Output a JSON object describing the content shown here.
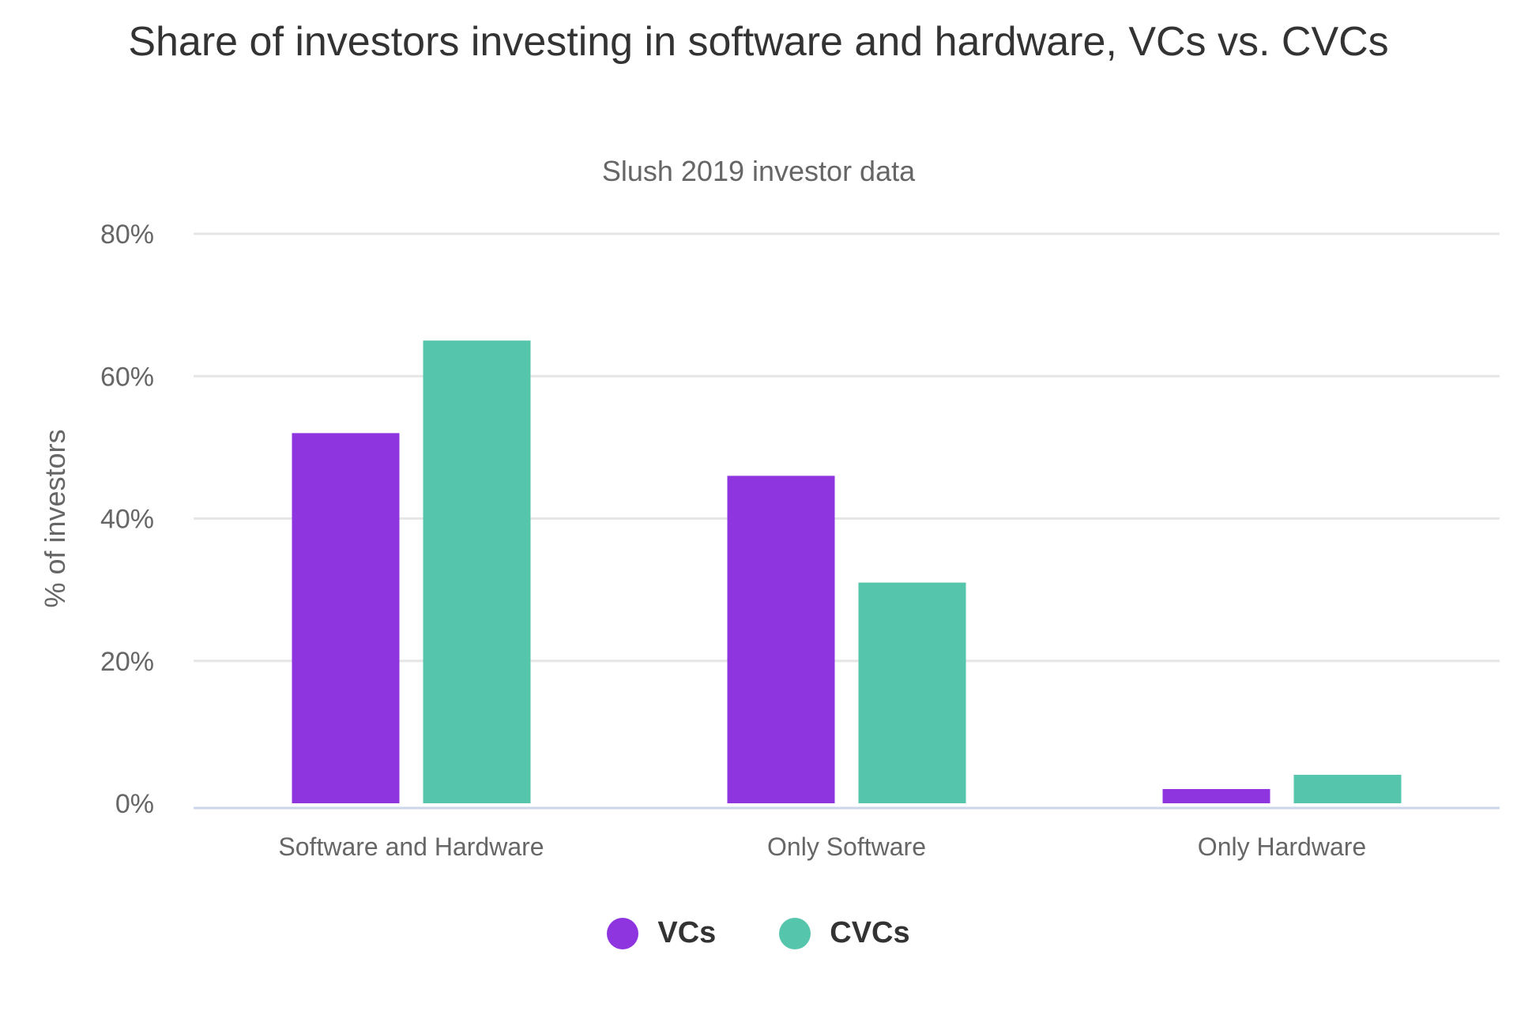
{
  "chart_data": {
    "type": "bar",
    "title": "Share of investors investing in software and hardware, VCs vs. CVCs",
    "subtitle": "Slush 2019 investor data",
    "xlabel": "",
    "ylabel": "% of investors",
    "ylim": [
      0,
      80
    ],
    "yticks": [
      "0%",
      "20%",
      "40%",
      "60%",
      "80%"
    ],
    "categories": [
      "Software and Hardware",
      "Only Software",
      "Only Hardware"
    ],
    "series": [
      {
        "name": "VCs",
        "color": "#8e35df",
        "values": [
          52,
          46,
          2
        ]
      },
      {
        "name": "CVCs",
        "color": "#55c6ac",
        "values": [
          65,
          31,
          4
        ]
      }
    ],
    "grid": true,
    "legend_position": "bottom-center"
  }
}
